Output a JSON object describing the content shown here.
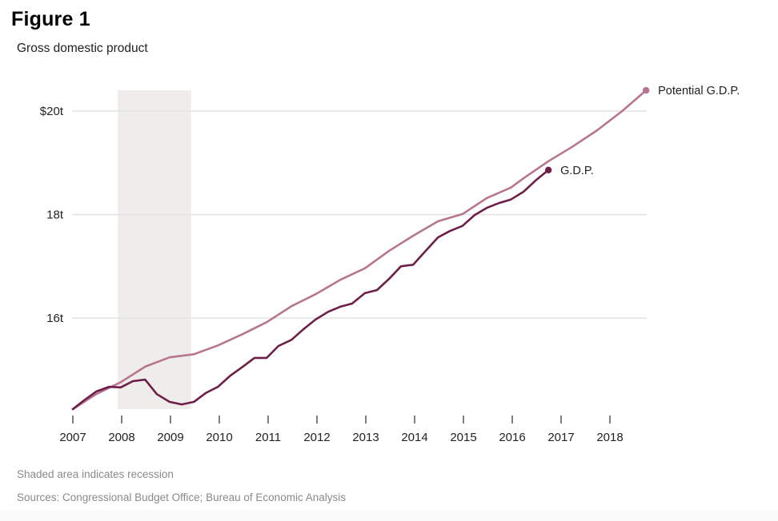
{
  "figure": {
    "label": "Figure 1",
    "subtitle": "Gross domestic product",
    "notes": [
      "Shaded area indicates recession",
      "Sources: Congressional Budget Office; Bureau of Economic Analysis"
    ]
  },
  "colors": {
    "gdp": "#6e1f47",
    "potential": "#b87590",
    "recession_shade": "#efedeb",
    "gridline": "#e3e3e3"
  },
  "chart_data": {
    "type": "line",
    "title": "Gross domestic product",
    "xlabel": "",
    "ylabel": "",
    "units": "trillions of dollars",
    "xlim": [
      2007,
      2018.74
    ],
    "ylim": [
      14.24,
      20.4
    ],
    "grid": true,
    "x_ticks": [
      "2007",
      "2008",
      "2009",
      "2010",
      "2011",
      "2012",
      "2013",
      "2014",
      "2015",
      "2016",
      "2017",
      "2018"
    ],
    "x_tick_values": [
      2007,
      2008,
      2009,
      2010,
      2011,
      2012,
      2013,
      2014,
      2015,
      2016,
      2017,
      2018
    ],
    "y_ticks": [
      {
        "value": 20,
        "label": "$20t"
      },
      {
        "value": 18,
        "label": "18t"
      },
      {
        "value": 16,
        "label": "16t"
      }
    ],
    "shaded_regions": [
      {
        "name": "Recession",
        "x_start": 2007.92,
        "x_end": 2009.42
      }
    ],
    "legend": "inline-end-labels",
    "series": [
      {
        "name": "Potential G.D.P.",
        "label": "Potential G.D.P.",
        "x": [
          2007.0,
          2007.48,
          2007.98,
          2008.48,
          2008.98,
          2009.48,
          2009.97,
          2010.48,
          2010.97,
          2011.48,
          2011.97,
          2012.48,
          2012.98,
          2013.48,
          2013.97,
          2014.48,
          2014.98,
          2015.48,
          2015.97,
          2016.23,
          2016.74,
          2017.23,
          2017.74,
          2018.25,
          2018.74
        ],
        "values": [
          14.24,
          14.53,
          14.76,
          15.06,
          15.24,
          15.3,
          15.47,
          15.69,
          15.92,
          16.23,
          16.46,
          16.74,
          16.96,
          17.3,
          17.59,
          17.87,
          18.01,
          18.32,
          18.52,
          18.7,
          19.03,
          19.31,
          19.63,
          20.0,
          20.4
        ]
      },
      {
        "name": "G.D.P.",
        "label": "G.D.P.",
        "x": [
          2007.0,
          2007.23,
          2007.48,
          2007.74,
          2007.98,
          2008.23,
          2008.48,
          2008.72,
          2008.98,
          2009.23,
          2009.48,
          2009.72,
          2009.97,
          2010.23,
          2010.48,
          2010.72,
          2010.97,
          2011.21,
          2011.48,
          2011.72,
          2011.97,
          2012.23,
          2012.48,
          2012.72,
          2012.98,
          2013.23,
          2013.48,
          2013.72,
          2013.97,
          2014.23,
          2014.48,
          2014.72,
          2014.98,
          2015.23,
          2015.48,
          2015.72,
          2015.97,
          2016.23,
          2016.48,
          2016.74
        ],
        "values": [
          14.24,
          14.41,
          14.58,
          14.67,
          14.66,
          14.78,
          14.81,
          14.53,
          14.38,
          14.33,
          14.38,
          14.55,
          14.67,
          14.89,
          15.06,
          15.23,
          15.23,
          15.46,
          15.58,
          15.78,
          15.97,
          16.12,
          16.22,
          16.28,
          16.48,
          16.54,
          16.76,
          17.0,
          17.03,
          17.3,
          17.56,
          17.68,
          17.78,
          17.99,
          18.13,
          18.22,
          18.29,
          18.44,
          18.66,
          18.86
        ]
      }
    ]
  }
}
